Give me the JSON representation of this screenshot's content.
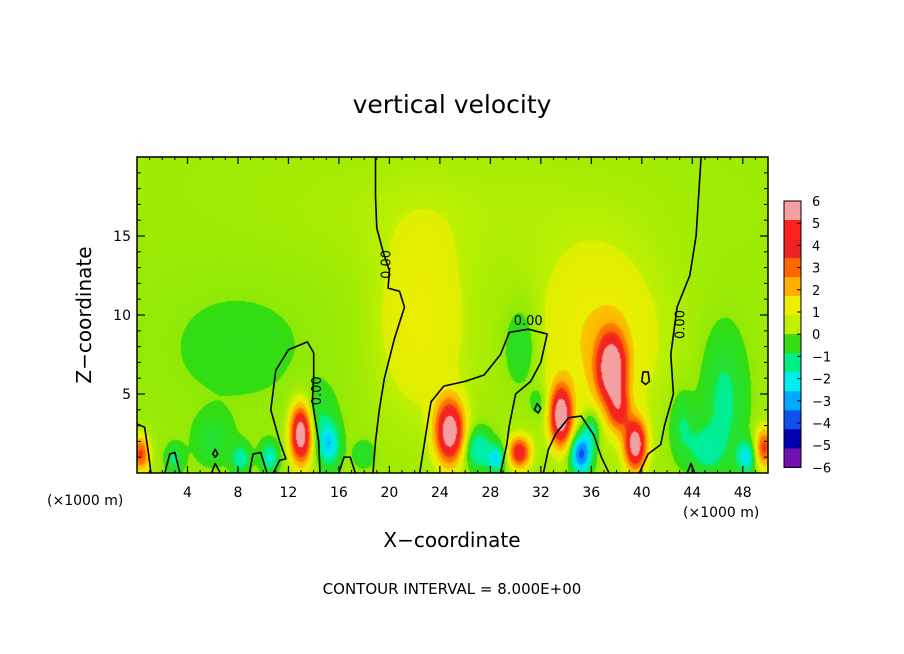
{
  "chart_data": {
    "type": "heatmap",
    "title": "vertical velocity",
    "xlabel": "X−coordinate",
    "ylabel": "Z−coordinate",
    "x_unit_label": "(×1000 m)",
    "xlim": [
      0,
      50
    ],
    "ylim": [
      0,
      20
    ],
    "xticks": [
      4,
      8,
      12,
      16,
      20,
      24,
      28,
      32,
      36,
      40,
      44,
      48
    ],
    "xtick_labels": [
      "4",
      "8",
      "12",
      "16",
      "20",
      "24",
      "28",
      "32",
      "36",
      "40",
      "44",
      "48"
    ],
    "yticks": [
      5,
      10,
      15
    ],
    "ytick_labels": [
      "5",
      "10",
      "15"
    ],
    "colorbar": {
      "levels": [
        6,
        5,
        4,
        3,
        2,
        1,
        0,
        -1,
        -2,
        -3,
        -4,
        -5,
        -6
      ],
      "labels": [
        "6",
        "5",
        "4",
        "3",
        "2",
        "1",
        "0",
        "−1",
        "−2",
        "−3",
        "−4",
        "−5",
        "−6"
      ],
      "colors": [
        "#f4a0a0",
        "#ff2020",
        "#ee2222",
        "#ff6600",
        "#ffb000",
        "#eeee00",
        "#c0f000",
        "#33dd11",
        "#00ee88",
        "#00eeee",
        "#00aaff",
        "#1050ee",
        "#0000b0",
        "#7010b0"
      ]
    },
    "contour_interval_text": "CONTOUR INTERVAL = 8.000E+00",
    "contour_label": "0.00",
    "background_value": 0.3,
    "features": [
      {
        "x": 13.0,
        "z": 2.5,
        "sx": 0.6,
        "sz": 1.3,
        "w": 7.5
      },
      {
        "x": 24.8,
        "z": 2.6,
        "sx": 0.8,
        "sz": 1.4,
        "w": 7.0
      },
      {
        "x": 30.3,
        "z": 1.3,
        "sx": 0.6,
        "sz": 0.7,
        "w": 5.0
      },
      {
        "x": 33.6,
        "z": 3.6,
        "sx": 0.6,
        "sz": 1.3,
        "w": 7.0
      },
      {
        "x": 37.6,
        "z": 6.6,
        "sx": 0.8,
        "sz": 1.5,
        "w": 6.8
      },
      {
        "x": 38.2,
        "z": 4.0,
        "sx": 0.6,
        "sz": 1.0,
        "w": 3.5
      },
      {
        "x": 39.5,
        "z": 1.8,
        "sx": 0.6,
        "sz": 1.1,
        "w": 6.8
      },
      {
        "x": 0.3,
        "z": 1.2,
        "sx": 0.5,
        "sz": 0.8,
        "w": 4.0
      },
      {
        "x": 49.7,
        "z": 1.6,
        "sx": 0.5,
        "sz": 0.9,
        "w": 4.0
      },
      {
        "x": 22.5,
        "z": 9.5,
        "sx": 2.5,
        "sz": 4.0,
        "w": 1.6
      },
      {
        "x": 36.5,
        "z": 8.5,
        "sx": 3.5,
        "sz": 4.0,
        "w": 1.8
      },
      {
        "x": 15.2,
        "z": 1.8,
        "sx": 0.6,
        "sz": 0.9,
        "w": -3.0
      },
      {
        "x": 14.2,
        "z": 3.5,
        "sx": 1.0,
        "sz": 1.2,
        "w": -1.2
      },
      {
        "x": 27.0,
        "z": 1.5,
        "sx": 0.8,
        "sz": 0.9,
        "w": -2.4
      },
      {
        "x": 28.5,
        "z": 0.9,
        "sx": 0.5,
        "sz": 0.6,
        "w": -2.6
      },
      {
        "x": 35.2,
        "z": 1.2,
        "sx": 0.6,
        "sz": 0.9,
        "w": -4.8
      },
      {
        "x": 36.0,
        "z": 2.8,
        "sx": 0.5,
        "sz": 0.8,
        "w": -2.0
      },
      {
        "x": 31.8,
        "z": 4.5,
        "sx": 0.5,
        "sz": 0.7,
        "w": -1.0
      },
      {
        "x": 8.2,
        "z": 0.9,
        "sx": 0.5,
        "sz": 0.6,
        "w": -2.0
      },
      {
        "x": 10.5,
        "z": 1.0,
        "sx": 0.5,
        "sz": 0.6,
        "w": -2.3
      },
      {
        "x": 3.0,
        "z": 0.9,
        "sx": 0.5,
        "sz": 0.6,
        "w": -1.4
      },
      {
        "x": 6.0,
        "z": 2.0,
        "sx": 1.0,
        "sz": 1.0,
        "w": -1.0
      },
      {
        "x": 45.0,
        "z": 1.5,
        "sx": 0.9,
        "sz": 1.0,
        "w": -1.6
      },
      {
        "x": 46.5,
        "z": 4.5,
        "sx": 1.2,
        "sz": 3.0,
        "w": -1.6
      },
      {
        "x": 48.3,
        "z": 1.0,
        "sx": 0.5,
        "sz": 0.7,
        "w": -2.6
      },
      {
        "x": 43.2,
        "z": 3.0,
        "sx": 0.7,
        "sz": 1.5,
        "w": -1.4
      },
      {
        "x": 30.5,
        "z": 8.0,
        "sx": 1.0,
        "sz": 2.0,
        "w": -1.2
      },
      {
        "x": 18.0,
        "z": 1.2,
        "sx": 0.6,
        "sz": 0.6,
        "w": -1.0
      },
      {
        "x": 8.0,
        "z": 8.0,
        "sx": 6.0,
        "sz": 4.0,
        "w": -0.4
      },
      {
        "x": 25.0,
        "z": 16.5,
        "sx": 10.0,
        "sz": 2.5,
        "w": 0.4
      }
    ],
    "contours": [
      {
        "closed": false,
        "points": [
          [
            0,
            3.1
          ],
          [
            0.6,
            2.9
          ],
          [
            0.9,
            1.3
          ],
          [
            1.1,
            0
          ]
        ]
      },
      {
        "closed": false,
        "points": [
          [
            2.2,
            0
          ],
          [
            2.6,
            1.2
          ],
          [
            3.0,
            1.3
          ],
          [
            3.4,
            0
          ]
        ]
      },
      {
        "closed": false,
        "points": [
          [
            5.9,
            0
          ],
          [
            6.2,
            0.6
          ],
          [
            6.6,
            0
          ]
        ]
      },
      {
        "closed": false,
        "points": [
          [
            8.9,
            0
          ],
          [
            9.2,
            1.2
          ],
          [
            9.8,
            1.3
          ],
          [
            10.3,
            0
          ]
        ]
      },
      {
        "closed": false,
        "points": [
          [
            10.8,
            0
          ],
          [
            11.3,
            0.8
          ],
          [
            11.8,
            0.9
          ],
          [
            11.3,
            2.0
          ],
          [
            10.6,
            4.0
          ],
          [
            11.0,
            6.5
          ],
          [
            12.0,
            7.8
          ],
          [
            13.5,
            8.3
          ],
          [
            14.0,
            7.6
          ],
          [
            14.0,
            6.2
          ],
          [
            13.9,
            4.5
          ],
          [
            14.4,
            2.0
          ],
          [
            14.5,
            0
          ]
        ]
      },
      {
        "closed": false,
        "points": [
          [
            16.0,
            0
          ],
          [
            16.4,
            1.0
          ],
          [
            16.9,
            1.0
          ],
          [
            17.3,
            0
          ]
        ]
      },
      {
        "closed": false,
        "points": [
          [
            18.7,
            0
          ],
          [
            18.9,
            2.0
          ],
          [
            19.2,
            4.0
          ],
          [
            19.6,
            6.0
          ],
          [
            20.4,
            8.5
          ],
          [
            21.2,
            10.5
          ],
          [
            20.8,
            11.5
          ],
          [
            19.9,
            11.7
          ],
          [
            20.0,
            12.8
          ],
          [
            19.5,
            14.0
          ],
          [
            19.0,
            15.5
          ],
          [
            18.9,
            17.5
          ],
          [
            18.9,
            20
          ]
        ]
      },
      {
        "closed": false,
        "points": [
          [
            22.4,
            0
          ],
          [
            22.8,
            2.0
          ],
          [
            23.3,
            4.5
          ],
          [
            24.3,
            5.5
          ],
          [
            26.0,
            5.8
          ],
          [
            27.5,
            6.2
          ],
          [
            28.8,
            7.5
          ],
          [
            29.5,
            8.9
          ],
          [
            31.0,
            9.1
          ],
          [
            32.5,
            8.8
          ],
          [
            32.0,
            7.0
          ],
          [
            31.2,
            5.8
          ],
          [
            30.0,
            5.0
          ],
          [
            29.5,
            3.0
          ],
          [
            29.3,
            1.8
          ],
          [
            28.8,
            0
          ]
        ]
      },
      {
        "closed": false,
        "points": [
          [
            32.2,
            0
          ],
          [
            32.6,
            1.5
          ],
          [
            33.2,
            2.5
          ],
          [
            34.2,
            3.5
          ],
          [
            35.2,
            3.6
          ],
          [
            36.2,
            2.4
          ],
          [
            36.8,
            1.0
          ],
          [
            37.4,
            0
          ]
        ]
      },
      {
        "closed": false,
        "points": [
          [
            39.8,
            0
          ],
          [
            40.5,
            1.2
          ],
          [
            41.5,
            1.8
          ],
          [
            41.8,
            3.0
          ],
          [
            42.5,
            5.0
          ],
          [
            42.3,
            7.5
          ],
          [
            42.8,
            10.5
          ],
          [
            43.8,
            12.5
          ],
          [
            44.3,
            15.0
          ],
          [
            44.5,
            17.5
          ],
          [
            44.7,
            20
          ]
        ]
      },
      {
        "closed": false,
        "points": [
          [
            43.6,
            0
          ],
          [
            43.9,
            0.6
          ],
          [
            44.2,
            0
          ]
        ]
      },
      {
        "closed": true,
        "points": [
          [
            40.0,
            5.8
          ],
          [
            40.3,
            5.6
          ],
          [
            40.6,
            5.8
          ],
          [
            40.5,
            6.4
          ],
          [
            40.1,
            6.4
          ]
        ]
      },
      {
        "closed": true,
        "points": [
          [
            31.5,
            4.0
          ],
          [
            31.8,
            3.8
          ],
          [
            32.0,
            4.1
          ],
          [
            31.7,
            4.4
          ]
        ]
      },
      {
        "closed": true,
        "points": [
          [
            6.0,
            1.2
          ],
          [
            6.2,
            1.0
          ],
          [
            6.4,
            1.2
          ],
          [
            6.2,
            1.5
          ]
        ]
      }
    ],
    "contour_labels": [
      {
        "x": 14.3,
        "z": 5.2,
        "angle": -90
      },
      {
        "x": 19.8,
        "z": 13.2,
        "angle": -90
      },
      {
        "x": 31.0,
        "z": 9.6,
        "angle": 0
      },
      {
        "x": 43.1,
        "z": 9.4,
        "angle": -90
      }
    ]
  }
}
